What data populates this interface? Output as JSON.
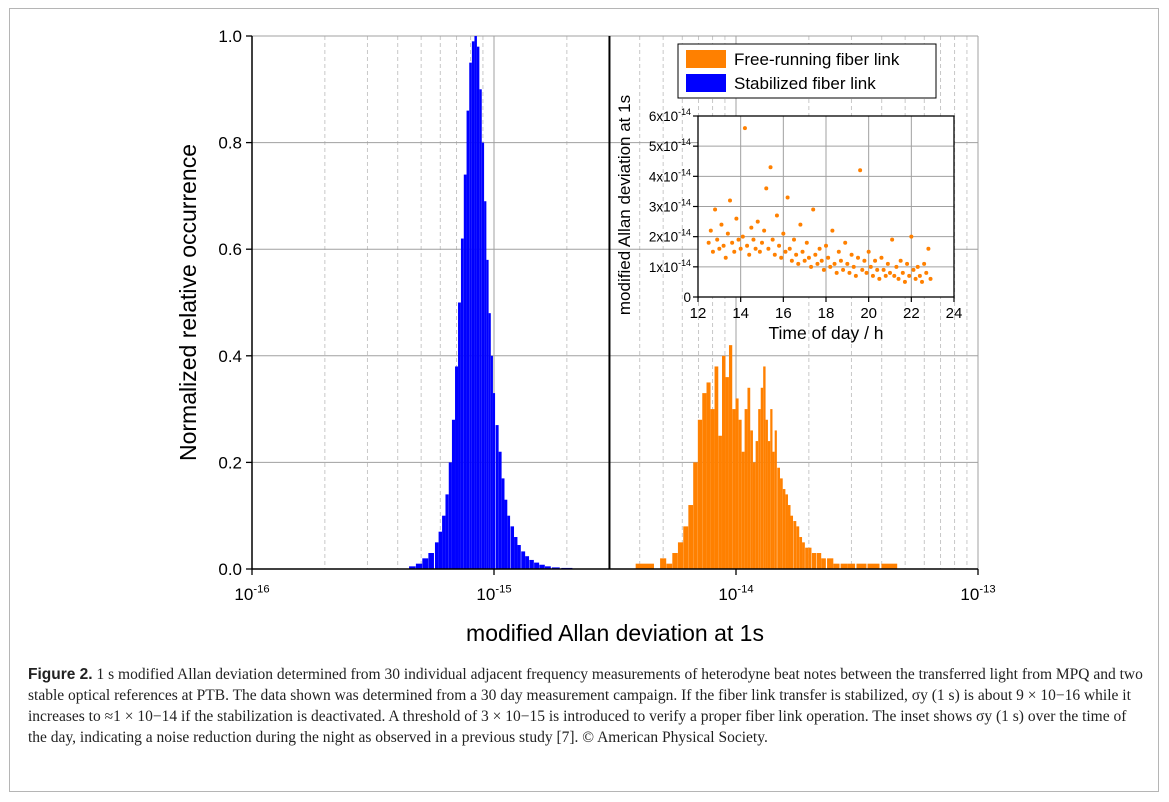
{
  "chart_data": [
    {
      "type": "bar",
      "name": "main histogram",
      "xlabel": "modified Allan deviation at 1s",
      "ylabel": "Normalized relative occurrence",
      "x_scale": "log",
      "xlim": [
        1e-16,
        1e-13
      ],
      "ylim": [
        0,
        1.0
      ],
      "x_ticks": [
        {
          "base": "10",
          "exp": "-16"
        },
        {
          "base": "10",
          "exp": "-15"
        },
        {
          "base": "10",
          "exp": "-14"
        },
        {
          "base": "10",
          "exp": "-13"
        }
      ],
      "y_ticks": [
        "0.0",
        "0.2",
        "0.4",
        "0.6",
        "0.8",
        "1.0"
      ],
      "grid": true,
      "threshold": 3e-15,
      "legend": {
        "placement": "top-right",
        "entries": [
          {
            "label": "Free-running fiber link",
            "color": "#ff8000"
          },
          {
            "label": "Stabilized fiber link",
            "color": "#0000ff"
          }
        ]
      },
      "series": [
        {
          "name": "Stabilized fiber link",
          "color": "#0000ff",
          "x": [
            4.6e-16,
            4.9e-16,
            5.2e-16,
            5.5e-16,
            5.8e-16,
            6e-16,
            6.2e-16,
            6.4e-16,
            6.6e-16,
            6.8e-16,
            7e-16,
            7.2e-16,
            7.4e-16,
            7.6e-16,
            7.8e-16,
            8e-16,
            8.2e-16,
            8.4e-16,
            8.6e-16,
            8.8e-16,
            9e-16,
            9.2e-16,
            9.4e-16,
            9.6e-16,
            9.8e-16,
            1e-15,
            1.03e-15,
            1.06e-15,
            1.09e-15,
            1.12e-15,
            1.15e-15,
            1.19e-15,
            1.23e-15,
            1.27e-15,
            1.32e-15,
            1.37e-15,
            1.43e-15,
            1.5e-15,
            1.58e-15,
            1.67e-15,
            1.8e-15,
            2e-15
          ],
          "values": [
            0.005,
            0.01,
            0.02,
            0.03,
            0.05,
            0.07,
            0.1,
            0.14,
            0.2,
            0.28,
            0.38,
            0.5,
            0.62,
            0.74,
            0.86,
            0.95,
            0.99,
            1.0,
            0.98,
            0.9,
            0.8,
            0.69,
            0.58,
            0.48,
            0.4,
            0.33,
            0.27,
            0.22,
            0.17,
            0.13,
            0.1,
            0.08,
            0.06,
            0.045,
            0.033,
            0.024,
            0.017,
            0.012,
            0.008,
            0.005,
            0.003,
            0.002
          ]
        },
        {
          "name": "Free-running fiber link",
          "color": "#ff8000",
          "x": [
            4.2e-15,
            5e-15,
            5.3e-15,
            5.6e-15,
            5.9e-15,
            6.2e-15,
            6.5e-15,
            6.8e-15,
            7.1e-15,
            7.4e-15,
            7.7e-15,
            8e-15,
            8.3e-15,
            8.6e-15,
            8.9e-15,
            9.2e-15,
            9.5e-15,
            9.8e-15,
            1.01e-14,
            1.04e-14,
            1.07e-14,
            1.1e-14,
            1.13e-14,
            1.16e-14,
            1.19e-14,
            1.22e-14,
            1.25e-14,
            1.28e-14,
            1.31e-14,
            1.34e-14,
            1.37e-14,
            1.4e-14,
            1.43e-14,
            1.46e-14,
            1.5e-14,
            1.54e-14,
            1.58e-14,
            1.62e-14,
            1.66e-14,
            1.7e-14,
            1.75e-14,
            1.8e-14,
            1.85e-14,
            1.9e-14,
            1.96e-14,
            2.02e-14,
            2.1e-14,
            2.2e-14,
            2.3e-14,
            2.45e-14,
            2.6e-14,
            2.8e-14,
            3e-14,
            3.3e-14,
            3.7e-14,
            4.3e-14
          ],
          "values": [
            0.01,
            0.02,
            0.01,
            0.03,
            0.05,
            0.08,
            0.12,
            0.2,
            0.28,
            0.33,
            0.35,
            0.3,
            0.38,
            0.25,
            0.4,
            0.36,
            0.42,
            0.3,
            0.32,
            0.28,
            0.22,
            0.3,
            0.34,
            0.26,
            0.2,
            0.24,
            0.3,
            0.34,
            0.38,
            0.28,
            0.24,
            0.3,
            0.22,
            0.26,
            0.19,
            0.17,
            0.15,
            0.14,
            0.12,
            0.1,
            0.09,
            0.08,
            0.06,
            0.05,
            0.04,
            0.04,
            0.03,
            0.03,
            0.02,
            0.02,
            0.01,
            0.01,
            0.01,
            0.01,
            0.01,
            0.01
          ]
        }
      ]
    },
    {
      "type": "scatter",
      "name": "inset",
      "xlabel": "Time of day / h",
      "ylabel": "modified Allan deviation at 1s",
      "xlim": [
        12,
        24
      ],
      "ylim": [
        0,
        6e-14
      ],
      "x_ticks": [
        "12",
        "14",
        "16",
        "18",
        "20",
        "22",
        "24"
      ],
      "y_ticks": [
        {
          "mant": "0",
          "exp": ""
        },
        {
          "mant": "1x10",
          "exp": "-14"
        },
        {
          "mant": "2x10",
          "exp": "-14"
        },
        {
          "mant": "3x10",
          "exp": "-14"
        },
        {
          "mant": "4x10",
          "exp": "-14"
        },
        {
          "mant": "5x10",
          "exp": "-14"
        },
        {
          "mant": "6x10",
          "exp": "-14"
        }
      ],
      "grid": true,
      "series": [
        {
          "name": "Free-running fiber link",
          "color": "#ff8000",
          "points": [
            [
              12.5,
              1.8e-14
            ],
            [
              12.6,
              2.2e-14
            ],
            [
              12.7,
              1.5e-14
            ],
            [
              12.8,
              2.9e-14
            ],
            [
              12.9,
              1.9e-14
            ],
            [
              13.0,
              1.6e-14
            ],
            [
              13.1,
              2.4e-14
            ],
            [
              13.2,
              1.7e-14
            ],
            [
              13.3,
              1.3e-14
            ],
            [
              13.4,
              2.1e-14
            ],
            [
              13.5,
              3.2e-14
            ],
            [
              13.6,
              1.8e-14
            ],
            [
              13.7,
              1.5e-14
            ],
            [
              13.8,
              2.6e-14
            ],
            [
              13.9,
              1.9e-14
            ],
            [
              14.0,
              1.6e-14
            ],
            [
              14.1,
              2e-14
            ],
            [
              14.2,
              5.6e-14
            ],
            [
              14.3,
              1.7e-14
            ],
            [
              14.4,
              1.4e-14
            ],
            [
              14.5,
              2.3e-14
            ],
            [
              14.6,
              1.9e-14
            ],
            [
              14.7,
              1.6e-14
            ],
            [
              14.8,
              2.5e-14
            ],
            [
              14.9,
              1.5e-14
            ],
            [
              15.0,
              1.8e-14
            ],
            [
              15.1,
              2.2e-14
            ],
            [
              15.2,
              3.6e-14
            ],
            [
              15.3,
              1.6e-14
            ],
            [
              15.4,
              4.3e-14
            ],
            [
              15.5,
              1.9e-14
            ],
            [
              15.6,
              1.4e-14
            ],
            [
              15.7,
              2.7e-14
            ],
            [
              15.8,
              1.7e-14
            ],
            [
              15.9,
              1.3e-14
            ],
            [
              16.0,
              2.1e-14
            ],
            [
              16.1,
              1.5e-14
            ],
            [
              16.2,
              3.3e-14
            ],
            [
              16.3,
              1.6e-14
            ],
            [
              16.4,
              1.2e-14
            ],
            [
              16.5,
              1.9e-14
            ],
            [
              16.6,
              1.4e-14
            ],
            [
              16.7,
              1.1e-14
            ],
            [
              16.8,
              2.4e-14
            ],
            [
              16.9,
              1.5e-14
            ],
            [
              17.0,
              1.2e-14
            ],
            [
              17.1,
              1.8e-14
            ],
            [
              17.2,
              1.3e-14
            ],
            [
              17.3,
              1e-14
            ],
            [
              17.4,
              2.9e-14
            ],
            [
              17.5,
              1.4e-14
            ],
            [
              17.6,
              1.1e-14
            ],
            [
              17.7,
              1.6e-14
            ],
            [
              17.8,
              1.2e-14
            ],
            [
              17.9,
              9e-15
            ],
            [
              18.0,
              1.7e-14
            ],
            [
              18.1,
              1.3e-14
            ],
            [
              18.2,
              1e-14
            ],
            [
              18.3,
              2.2e-14
            ],
            [
              18.4,
              1.1e-14
            ],
            [
              18.5,
              8e-15
            ],
            [
              18.6,
              1.5e-14
            ],
            [
              18.7,
              1.2e-14
            ],
            [
              18.8,
              9e-15
            ],
            [
              18.9,
              1.8e-14
            ],
            [
              19.0,
              1.1e-14
            ],
            [
              19.1,
              8e-15
            ],
            [
              19.2,
              1.4e-14
            ],
            [
              19.3,
              1e-14
            ],
            [
              19.4,
              7e-15
            ],
            [
              19.5,
              1.3e-14
            ],
            [
              19.6,
              4.2e-14
            ],
            [
              19.7,
              9e-15
            ],
            [
              19.8,
              1.2e-14
            ],
            [
              19.9,
              8e-15
            ],
            [
              20.0,
              1.5e-14
            ],
            [
              20.1,
              1e-14
            ],
            [
              20.2,
              7e-15
            ],
            [
              20.3,
              1.2e-14
            ],
            [
              20.4,
              9e-15
            ],
            [
              20.5,
              6e-15
            ],
            [
              20.6,
              1.3e-14
            ],
            [
              20.7,
              9e-15
            ],
            [
              20.8,
              7e-15
            ],
            [
              20.9,
              1.1e-14
            ],
            [
              21.0,
              8e-15
            ],
            [
              21.1,
              1.9e-14
            ],
            [
              21.2,
              7e-15
            ],
            [
              21.3,
              1e-14
            ],
            [
              21.4,
              6e-15
            ],
            [
              21.5,
              1.2e-14
            ],
            [
              21.6,
              8e-15
            ],
            [
              21.7,
              5e-15
            ],
            [
              21.8,
              1.1e-14
            ],
            [
              21.9,
              7e-15
            ],
            [
              22.0,
              2e-14
            ],
            [
              22.1,
              9e-15
            ],
            [
              22.2,
              6e-15
            ],
            [
              22.3,
              1e-14
            ],
            [
              22.4,
              7e-15
            ],
            [
              22.5,
              5e-15
            ],
            [
              22.6,
              1.1e-14
            ],
            [
              22.7,
              8e-15
            ],
            [
              22.8,
              1.6e-14
            ],
            [
              22.9,
              6e-15
            ]
          ]
        }
      ]
    }
  ],
  "caption": {
    "label": "Figure 2.",
    "text": "1 s modified Allan deviation determined from 30 individual adjacent frequency measurements of heterodyne beat notes between the transferred light from MPQ and two stable optical references at PTB. The data shown was determined from a 30 day measurement campaign. If the fiber link transfer is stabilized, σy (1 s) is about 9 × 10−16 while it increases to ≈1 × 10−14 if the stabilization is deactivated. A threshold of 3 × 10−15 is introduced to verify a proper fiber link operation. The inset shows σy (1 s) over the time of the day, indicating a noise reduction during the night as observed in a previous study [7]. © American Physical Society."
  }
}
